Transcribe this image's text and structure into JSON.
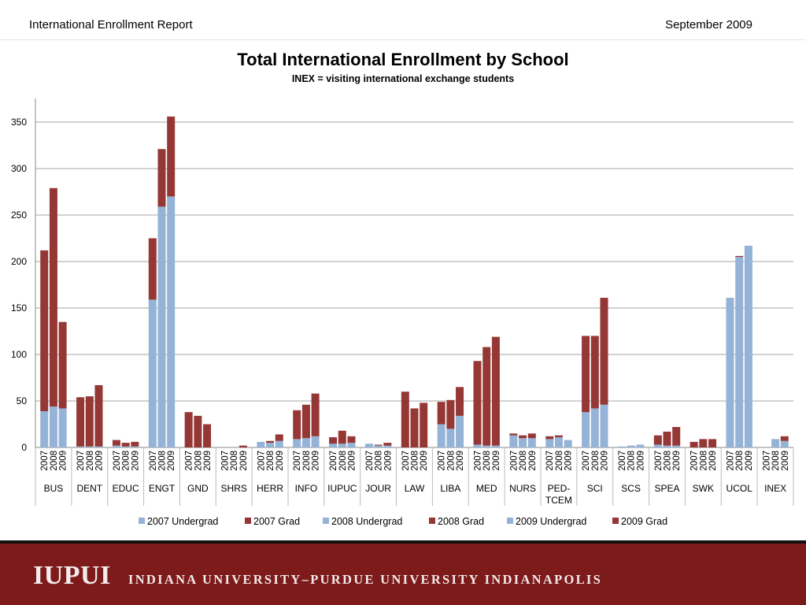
{
  "header": {
    "report_title": "International Enrollment Report",
    "date": "September 2009"
  },
  "colors": {
    "undergrad": "#95b3d7",
    "grad": "#953735",
    "footer": "#7d1a1a",
    "grid": "#a6a6a6"
  },
  "footer": {
    "logo": "IUPUI",
    "institution": "INDIANA UNIVERSITY–PURDUE UNIVERSITY INDIANAPOLIS"
  },
  "chart_data": {
    "type": "bar",
    "stacked": true,
    "title": "Total International Enrollment by School",
    "subtitle": "INEX = visiting international exchange students",
    "xlabel": "",
    "ylabel": "",
    "ylim": [
      0,
      350
    ],
    "yticks": [
      0,
      50,
      100,
      150,
      200,
      250,
      300,
      350
    ],
    "grid": true,
    "legend_position": "bottom",
    "years": [
      "2007",
      "2008",
      "2009"
    ],
    "legend": [
      "2007 Undergrad",
      "2007 Grad",
      "2008 Undergrad",
      "2008 Grad",
      "2009 Undergrad",
      "2009 Grad"
    ],
    "categories": [
      {
        "name": "BUS",
        "undergrad": [
          39,
          44,
          42
        ],
        "grad": [
          173,
          235,
          93
        ]
      },
      {
        "name": "DENT",
        "undergrad": [
          1,
          1,
          1
        ],
        "grad": [
          53,
          54,
          66
        ]
      },
      {
        "name": "EDUC",
        "undergrad": [
          2,
          1,
          1
        ],
        "grad": [
          6,
          4,
          5
        ]
      },
      {
        "name": "ENGT",
        "undergrad": [
          159,
          259,
          270
        ],
        "grad": [
          66,
          62,
          86
        ]
      },
      {
        "name": "GND",
        "undergrad": [
          0,
          0,
          0
        ],
        "grad": [
          38,
          34,
          25
        ]
      },
      {
        "name": "SHRS",
        "undergrad": [
          0,
          0,
          0
        ],
        "grad": [
          0,
          0,
          2
        ]
      },
      {
        "name": "HERR",
        "undergrad": [
          6,
          5,
          7
        ],
        "grad": [
          0,
          2,
          7
        ]
      },
      {
        "name": "INFO",
        "undergrad": [
          9,
          10,
          12
        ],
        "grad": [
          31,
          36,
          46
        ]
      },
      {
        "name": "IUPUC",
        "undergrad": [
          4,
          4,
          5
        ],
        "grad": [
          7,
          14,
          7
        ]
      },
      {
        "name": "JOUR",
        "undergrad": [
          4,
          2,
          2
        ],
        "grad": [
          0,
          1,
          3
        ]
      },
      {
        "name": "LAW",
        "undergrad": [
          0,
          0,
          0
        ],
        "grad": [
          60,
          42,
          48
        ]
      },
      {
        "name": "LIBA",
        "undergrad": [
          25,
          20,
          34
        ],
        "grad": [
          24,
          31,
          31
        ]
      },
      {
        "name": "MED",
        "undergrad": [
          3,
          2,
          2
        ],
        "grad": [
          90,
          106,
          117
        ]
      },
      {
        "name": "NURS",
        "undergrad": [
          13,
          10,
          10
        ],
        "grad": [
          2,
          3,
          5
        ]
      },
      {
        "name": "PED-TCEM",
        "undergrad": [
          9,
          11,
          8
        ],
        "grad": [
          3,
          2,
          0
        ]
      },
      {
        "name": "SCI",
        "undergrad": [
          38,
          42,
          46
        ],
        "grad": [
          82,
          78,
          115
        ]
      },
      {
        "name": "SCS",
        "undergrad": [
          1,
          2,
          3
        ],
        "grad": [
          0,
          0,
          0
        ]
      },
      {
        "name": "SPEA",
        "undergrad": [
          3,
          2,
          2
        ],
        "grad": [
          10,
          15,
          20
        ]
      },
      {
        "name": "SWK",
        "undergrad": [
          0,
          0,
          0
        ],
        "grad": [
          6,
          9,
          9
        ]
      },
      {
        "name": "UCOL",
        "undergrad": [
          161,
          205,
          217
        ],
        "grad": [
          0,
          1,
          0
        ]
      },
      {
        "name": "INEX",
        "undergrad": [
          0,
          9,
          7
        ],
        "grad": [
          0,
          0,
          5
        ]
      }
    ]
  }
}
